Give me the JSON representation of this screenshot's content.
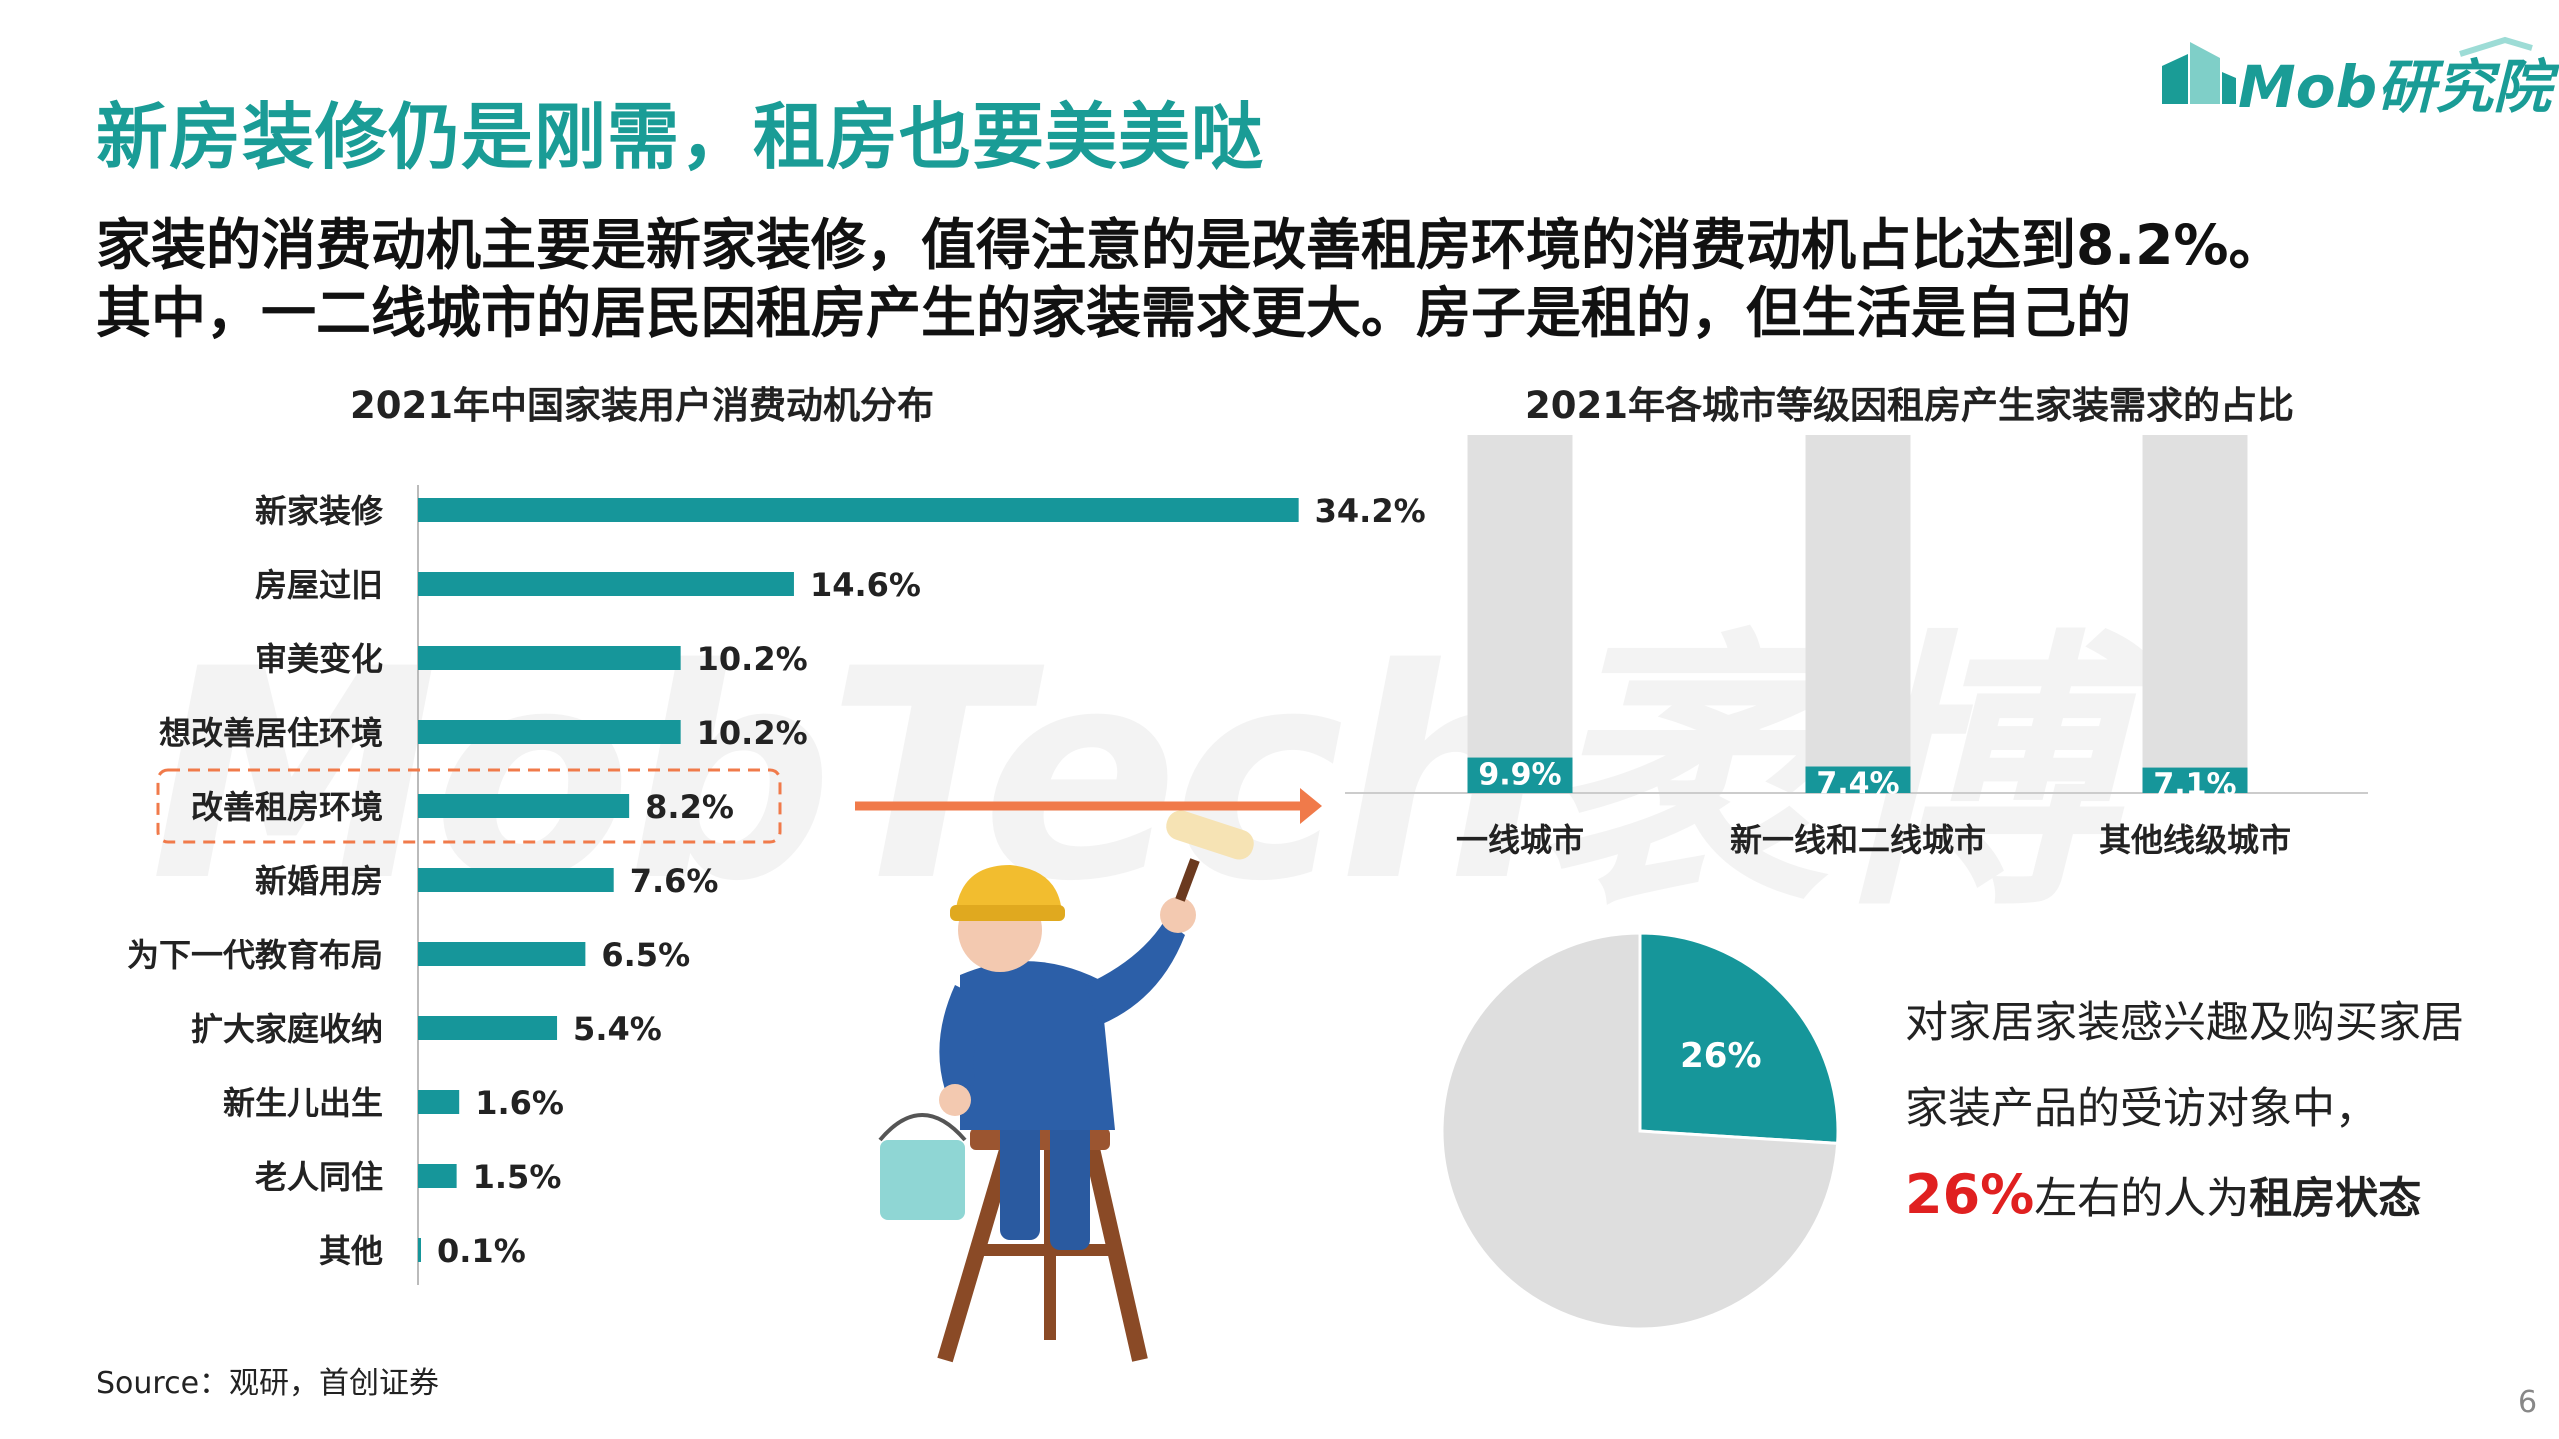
{
  "header": {
    "title": "新房装修仍是刚需，租房也要美美哒",
    "subtitle_lines": [
      "家装的消费动机主要是新家装修，值得注意的是改善租房环境的消费动机占比达到8.2%。",
      "其中，一二线城市的居民因租房产生的家装需求更大。房子是租的，但生活是自己的"
    ]
  },
  "brand": {
    "logo_text": "Mob研究院",
    "watermark": "MobTech袤博",
    "accent": "#1a9c96"
  },
  "chart_data": [
    {
      "type": "bar",
      "orientation": "horizontal",
      "title": "2021年中国家装用户消费动机分布",
      "categories": [
        "新家装修",
        "房屋过旧",
        "审美变化",
        "想改善居住环境",
        "改善租房环境",
        "新婚用房",
        "为下一代教育布局",
        "扩大家庭收纳",
        "新生儿出生",
        "老人同住",
        "其他"
      ],
      "values": [
        34.2,
        14.6,
        10.2,
        10.2,
        8.2,
        7.6,
        6.5,
        5.4,
        1.6,
        1.5,
        0.1
      ],
      "labels": [
        "34.2%",
        "14.6%",
        "10.2%",
        "10.2%",
        "8.2%",
        "7.6%",
        "6.5%",
        "5.4%",
        "1.6%",
        "1.5%",
        "0.1%"
      ],
      "highlight": "改善租房环境",
      "unit": "%",
      "bar_color": "#16969a",
      "xlim": [
        0,
        40
      ]
    },
    {
      "type": "bar",
      "orientation": "vertical",
      "stacked_to_100": true,
      "title": "2021年各城市等级因租房产生家装需求的占比",
      "categories": [
        "一线城市",
        "新一线和二线城市",
        "其他线级城市"
      ],
      "values": [
        9.9,
        7.4,
        7.1
      ],
      "labels": [
        "9.9%",
        "7.4%",
        "7.1%"
      ],
      "ylim": [
        0,
        100
      ],
      "bar_color": "#16969a",
      "background_color": "#e0e0e0"
    },
    {
      "type": "pie",
      "slices": [
        {
          "value": 26,
          "label": "26%",
          "color": "#16969a"
        },
        {
          "value": 74,
          "label": "",
          "color": "#dedede"
        }
      ]
    }
  ],
  "pie_caption": {
    "pre": "对家居家装感兴趣及购买家居家装产品的受访对象中，",
    "highlight": "26%",
    "mid": "左右的人为",
    "bold": "租房状态"
  },
  "footer": {
    "source": "Source：观研，首创证券",
    "page": "6"
  }
}
